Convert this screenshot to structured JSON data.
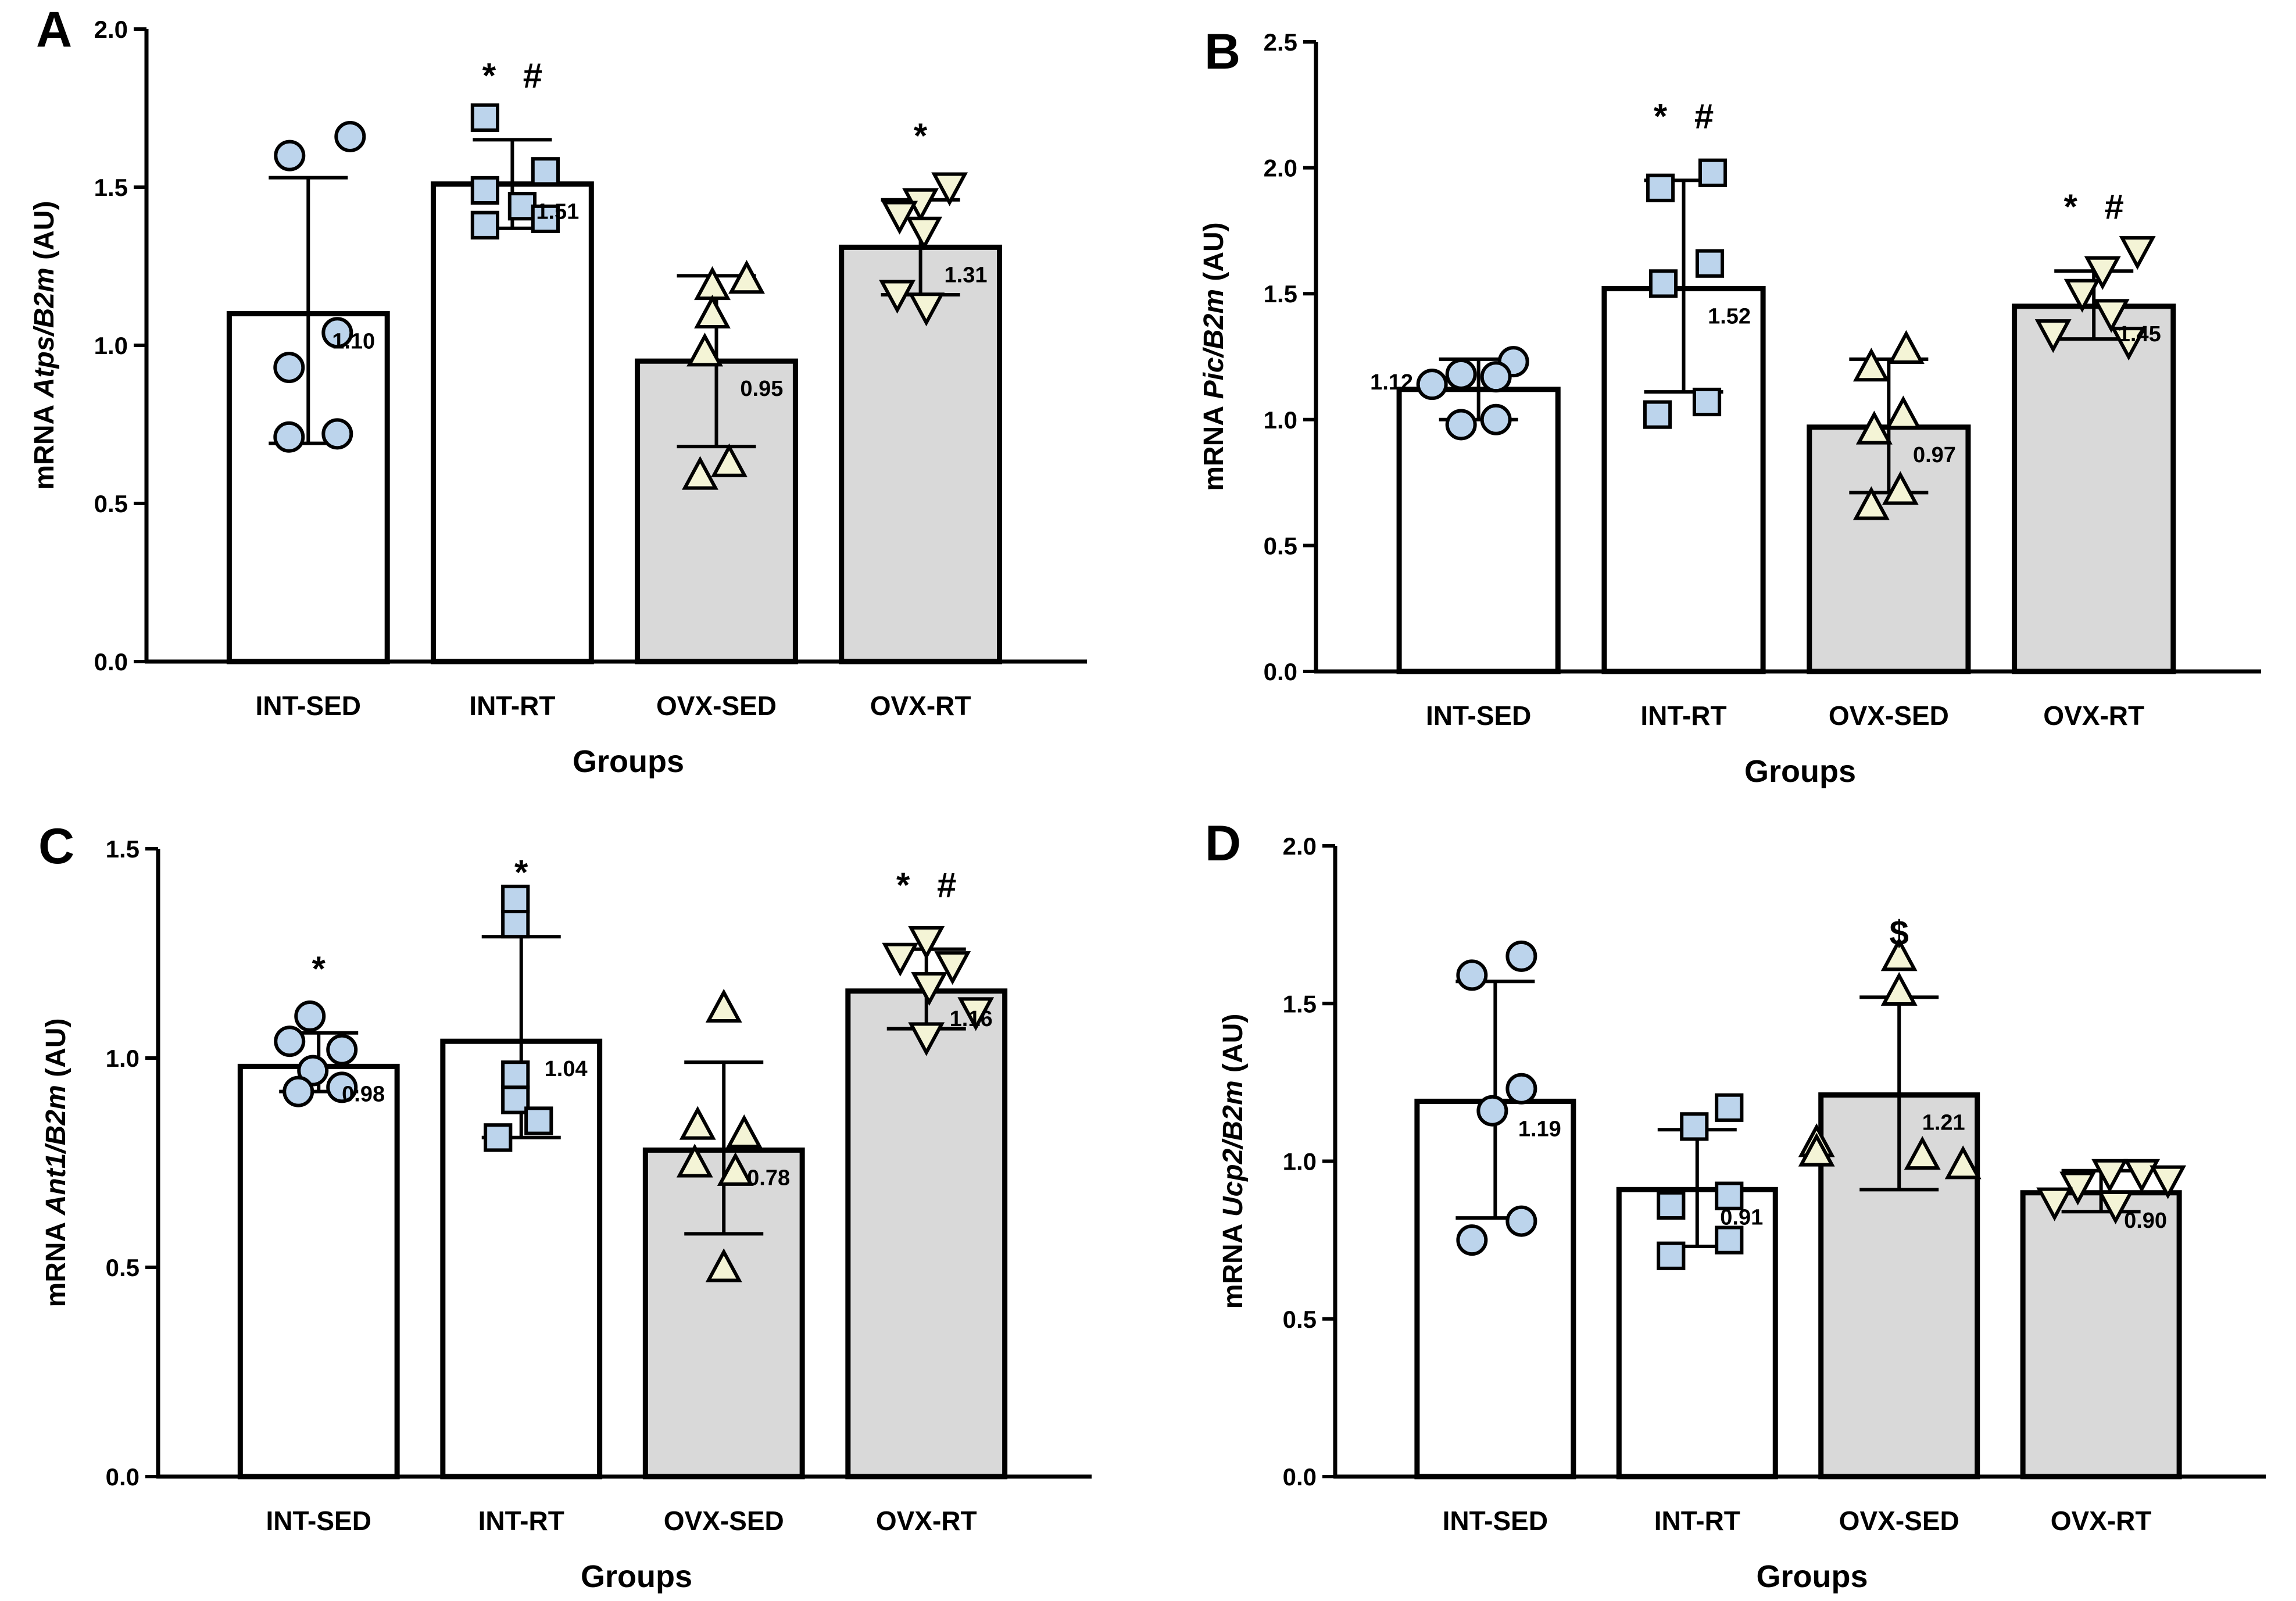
{
  "figure": {
    "panels": [
      "A",
      "B",
      "C",
      "D"
    ]
  },
  "colors": {
    "bar_fill_int": "#ffffff",
    "bar_fill_ovx": "#d9d9d9",
    "marker_int": "#bcd4ec",
    "marker_ovx": "#f4f4d6",
    "ink": "#000000"
  },
  "chart_data": [
    {
      "panel": "A",
      "type": "bar",
      "xlabel": "Groups",
      "ylabel": {
        "pre": "mRNA ",
        "italic": "Atps/B2m",
        "post": " (AU)"
      },
      "ylim": [
        0,
        2.0
      ],
      "yticks": [
        0.0,
        0.5,
        1.0,
        1.5,
        2.0
      ],
      "ytick_labels": [
        "0.0",
        "0.5",
        "1.0",
        "1.5",
        "2.0"
      ],
      "categories": [
        "INT-SED",
        "INT-RT",
        "OVX-SED",
        "OVX-RT"
      ],
      "values": [
        1.1,
        1.51,
        0.95,
        1.31
      ],
      "value_labels": [
        "1.10",
        "1.51",
        "0.95",
        "1.31"
      ],
      "error_low": [
        0.69,
        1.37,
        0.68,
        1.16
      ],
      "error_high": [
        1.53,
        1.65,
        1.22,
        1.46
      ],
      "markers": [
        "circle",
        "square",
        "triangle-up",
        "triangle-down"
      ],
      "points": [
        [
          1.66,
          1.6,
          1.04,
          0.93,
          0.72,
          0.71
        ],
        [
          1.72,
          1.55,
          1.49,
          1.44,
          1.4,
          1.38
        ],
        [
          1.21,
          1.19,
          1.1,
          0.98,
          0.63,
          0.59
        ],
        [
          1.5,
          1.45,
          1.41,
          1.36,
          1.16,
          1.12
        ]
      ],
      "significance": [
        "",
        "* #",
        "",
        "*"
      ]
    },
    {
      "panel": "B",
      "type": "bar",
      "xlabel": "Groups",
      "ylabel": {
        "pre": "mRNA ",
        "italic": "Pic/B2m",
        "post": " (AU)"
      },
      "ylim": [
        0,
        2.5
      ],
      "yticks": [
        0.0,
        0.5,
        1.0,
        1.5,
        2.0,
        2.5
      ],
      "ytick_labels": [
        "0.0",
        "0.5",
        "1.0",
        "1.5",
        "2.0",
        "2.5"
      ],
      "categories": [
        "INT-SED",
        "INT-RT",
        "OVX-SED",
        "OVX-RT"
      ],
      "values": [
        1.12,
        1.52,
        0.97,
        1.45
      ],
      "value_labels": [
        "1.12",
        "1.52",
        "0.97",
        "1.45"
      ],
      "error_low": [
        1.0,
        1.11,
        0.71,
        1.32
      ],
      "error_high": [
        1.24,
        1.95,
        1.24,
        1.59
      ],
      "markers": [
        "circle",
        "square",
        "triangle-up",
        "triangle-down"
      ],
      "points": [
        [
          1.23,
          1.18,
          1.17,
          1.14,
          1.0,
          0.98
        ],
        [
          1.98,
          1.92,
          1.62,
          1.54,
          1.07,
          1.02
        ],
        [
          1.28,
          1.21,
          1.02,
          0.96,
          0.72,
          0.66
        ],
        [
          1.67,
          1.59,
          1.5,
          1.42,
          1.34,
          1.31
        ]
      ],
      "significance": [
        "",
        "* #",
        "",
        "* #"
      ]
    },
    {
      "panel": "C",
      "type": "bar",
      "xlabel": "Groups",
      "ylabel": {
        "pre": "mRNA ",
        "italic": "Ant1/B2m",
        "post": " (AU)"
      },
      "ylim": [
        0,
        1.5
      ],
      "yticks": [
        0.0,
        0.5,
        1.0,
        1.5
      ],
      "ytick_labels": [
        "0.0",
        "0.5",
        "1.0",
        "1.5"
      ],
      "categories": [
        "INT-SED",
        "INT-RT",
        "OVX-SED",
        "OVX-RT"
      ],
      "values": [
        0.98,
        1.04,
        0.78,
        1.16
      ],
      "value_labels": [
        "0.98",
        "1.04",
        "0.78",
        "1.16"
      ],
      "error_low": [
        0.92,
        0.81,
        0.58,
        1.07
      ],
      "error_high": [
        1.06,
        1.29,
        0.99,
        1.26
      ],
      "markers": [
        "circle",
        "square",
        "triangle-up",
        "triangle-down"
      ],
      "points": [
        [
          1.1,
          1.04,
          1.02,
          0.97,
          0.93,
          0.92
        ],
        [
          1.38,
          1.32,
          0.96,
          0.9,
          0.85,
          0.81
        ],
        [
          1.12,
          0.84,
          0.82,
          0.75,
          0.73,
          0.5
        ],
        [
          1.28,
          1.24,
          1.22,
          1.17,
          1.11,
          1.05
        ]
      ],
      "significance": [
        "*",
        "*",
        "",
        "* #"
      ]
    },
    {
      "panel": "D",
      "type": "bar",
      "xlabel": "Groups",
      "ylabel": {
        "pre": "mRNA ",
        "italic": "Ucp2/B2m",
        "post": " (AU)"
      },
      "ylim": [
        0,
        2.0
      ],
      "yticks": [
        0.0,
        0.5,
        1.0,
        1.5,
        2.0
      ],
      "ytick_labels": [
        "0.0",
        "0.5",
        "1.0",
        "1.5",
        "2.0"
      ],
      "categories": [
        "INT-SED",
        "INT-RT",
        "OVX-SED",
        "OVX-RT"
      ],
      "values": [
        1.19,
        0.91,
        1.21,
        0.9
      ],
      "value_labels": [
        "1.19",
        "0.91",
        "1.21",
        "0.90"
      ],
      "error_low": [
        0.82,
        0.73,
        0.91,
        0.84
      ],
      "error_high": [
        1.57,
        1.1,
        1.52,
        0.97
      ],
      "markers": [
        "circle",
        "square",
        "triangle-up",
        "triangle-down"
      ],
      "points": [
        [
          1.65,
          1.59,
          1.23,
          1.16,
          0.81,
          0.75
        ],
        [
          1.17,
          1.11,
          0.89,
          0.86,
          0.75,
          0.7
        ],
        [
          1.65,
          1.54,
          1.06,
          1.03,
          1.02,
          0.99
        ],
        [
          0.96,
          0.96,
          0.94,
          0.92,
          0.87,
          0.86
        ]
      ],
      "significance": [
        "",
        "",
        "$",
        ""
      ]
    }
  ]
}
